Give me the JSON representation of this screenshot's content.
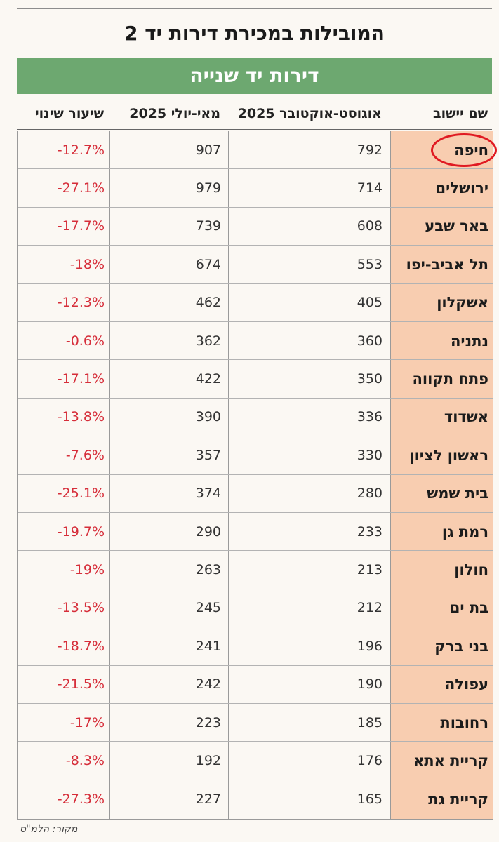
{
  "title": "המובילות במכירת דירות יד 2",
  "band_title": "דירות יד שנייה",
  "columns": {
    "name": "שם יישוב",
    "aug_oct": "אוגוסט-אוקטובר 2025",
    "may_jul": "מאי-יולי 2025",
    "change": "שיעור שינוי"
  },
  "chart_data": {
    "type": "table",
    "columns": [
      "שם יישוב",
      "אוגוסט-אוקטובר 2025",
      "מאי-יולי 2025",
      "שיעור שינוי"
    ],
    "rows": [
      {
        "name": "חיפה",
        "aug_oct": "792",
        "may_jul": "907",
        "change": "-12.7%"
      },
      {
        "name": "ירושלים",
        "aug_oct": "714",
        "may_jul": "979",
        "change": "-27.1%"
      },
      {
        "name": "באר שבע",
        "aug_oct": "608",
        "may_jul": "739",
        "change": "-17.7%"
      },
      {
        "name": "תל אביב-יפו",
        "aug_oct": "553",
        "may_jul": "674",
        "change": "-18%"
      },
      {
        "name": "אשקלון",
        "aug_oct": "405",
        "may_jul": "462",
        "change": "-12.3%"
      },
      {
        "name": "נתניה",
        "aug_oct": "360",
        "may_jul": "362",
        "change": "-0.6%"
      },
      {
        "name": "פתח תקווה",
        "aug_oct": "350",
        "may_jul": "422",
        "change": "-17.1%"
      },
      {
        "name": "אשדוד",
        "aug_oct": "336",
        "may_jul": "390",
        "change": "-13.8%"
      },
      {
        "name": "ראשון לציון",
        "aug_oct": "330",
        "may_jul": "357",
        "change": "-7.6%"
      },
      {
        "name": "בית שמש",
        "aug_oct": "280",
        "may_jul": "374",
        "change": "-25.1%"
      },
      {
        "name": "רמת גן",
        "aug_oct": "233",
        "may_jul": "290",
        "change": "-19.7%"
      },
      {
        "name": "חולון",
        "aug_oct": "213",
        "may_jul": "263",
        "change": "-19%"
      },
      {
        "name": "בת ים",
        "aug_oct": "212",
        "may_jul": "245",
        "change": "-13.5%"
      },
      {
        "name": "בני ברק",
        "aug_oct": "196",
        "may_jul": "241",
        "change": "-18.7%"
      },
      {
        "name": "עפולה",
        "aug_oct": "190",
        "may_jul": "242",
        "change": "-21.5%"
      },
      {
        "name": "רחובות",
        "aug_oct": "185",
        "may_jul": "223",
        "change": "-17%"
      },
      {
        "name": "קריית אתא",
        "aug_oct": "176",
        "may_jul": "192",
        "change": "-8.3%"
      },
      {
        "name": "קריית גת",
        "aug_oct": "165",
        "may_jul": "227",
        "change": "-27.3%"
      }
    ]
  },
  "source": "מקור: הלמ\"ס",
  "colors": {
    "band": "#6da870",
    "name_column": "#f8cdb0",
    "change_text": "#d62e3a",
    "highlight_circle": "#e01a22"
  },
  "highlighted_row": "חיפה"
}
